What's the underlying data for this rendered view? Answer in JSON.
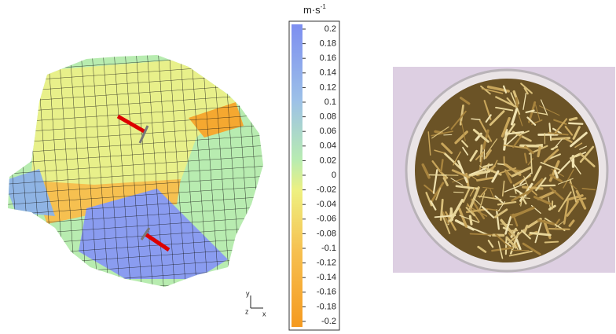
{
  "colorbar": {
    "unit": "m·s",
    "unit_exponent": "-1",
    "ticks": [
      0.2,
      0.18,
      0.16,
      0.14,
      0.12,
      0.1,
      0.08,
      0.06,
      0.04,
      0.02,
      0,
      -0.02,
      -0.04,
      -0.06,
      -0.08,
      -0.1,
      -0.12,
      -0.14,
      -0.16,
      -0.18,
      -0.2
    ]
  },
  "axes": {
    "y": "y",
    "z": "z",
    "x": "x"
  }
}
